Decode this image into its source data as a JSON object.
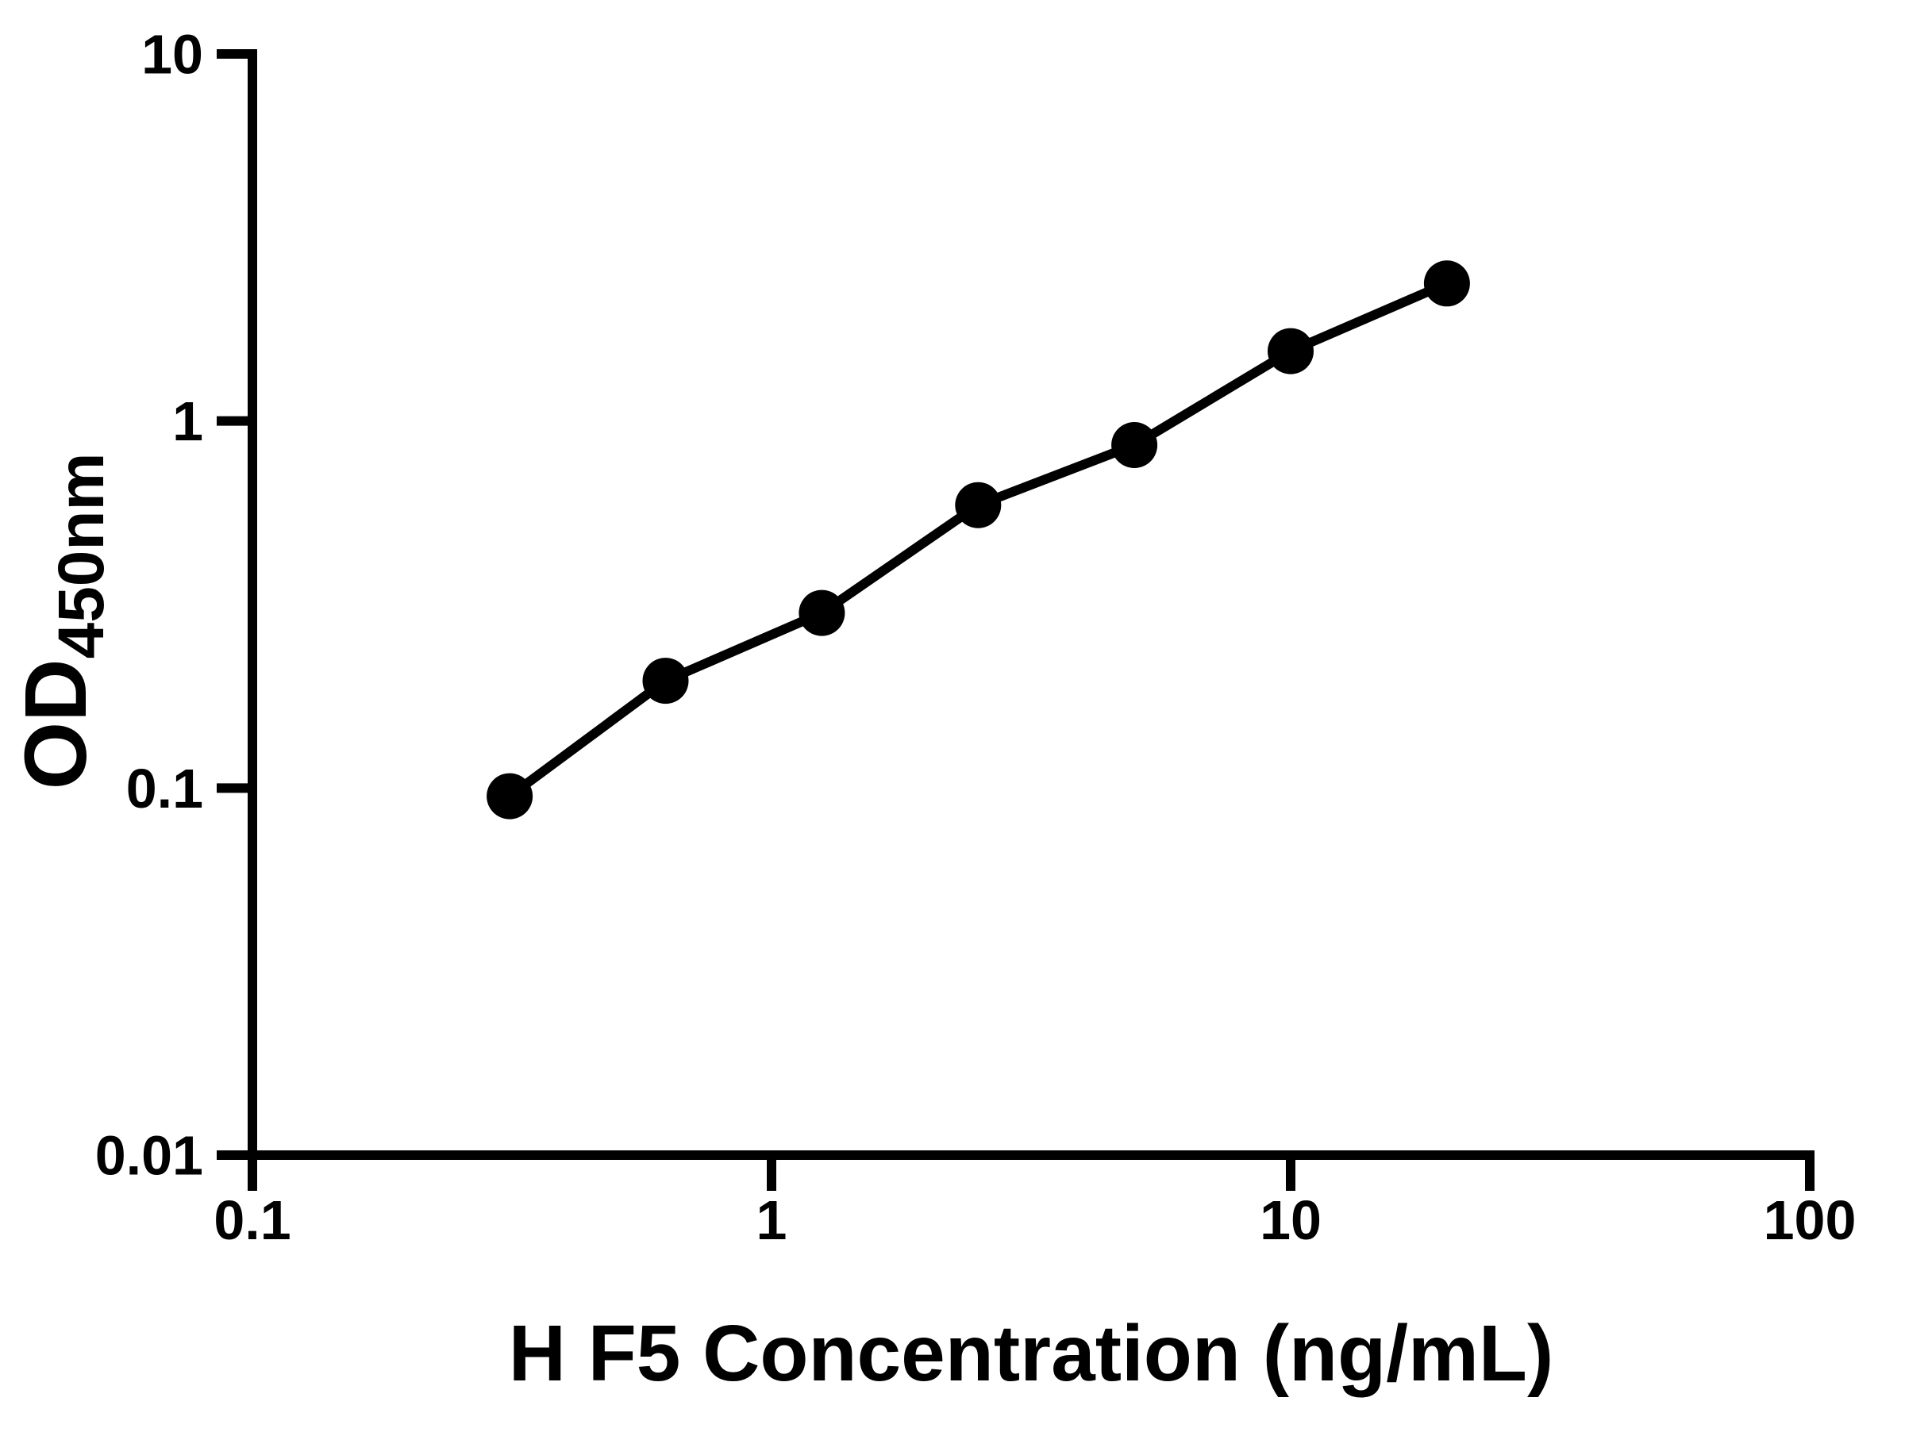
{
  "chart_data": {
    "type": "line",
    "title": "",
    "xlabel": "H F5 Concentration (ng/mL)",
    "ylabel_main": "OD",
    "ylabel_sub": "450nm",
    "x_scale": "log",
    "y_scale": "log",
    "xlim": [
      0.1,
      100
    ],
    "ylim": [
      0.01,
      10
    ],
    "grid": false,
    "legend": "none",
    "line_color": "#000000",
    "marker_color": "#000000",
    "background_color": "#ffffff",
    "x_ticks": [
      {
        "value": 0.1,
        "label": "0.1"
      },
      {
        "value": 1,
        "label": "1"
      },
      {
        "value": 10,
        "label": "10"
      },
      {
        "value": 100,
        "label": "100"
      }
    ],
    "y_ticks": [
      {
        "value": 0.01,
        "label": "0.01"
      },
      {
        "value": 0.1,
        "label": "0.1"
      },
      {
        "value": 1,
        "label": "1"
      },
      {
        "value": 10,
        "label": "10"
      }
    ],
    "points": [
      {
        "x": 0.313,
        "y": 0.095
      },
      {
        "x": 0.625,
        "y": 0.196
      },
      {
        "x": 1.25,
        "y": 0.3
      },
      {
        "x": 2.5,
        "y": 0.59
      },
      {
        "x": 5,
        "y": 0.86
      },
      {
        "x": 10,
        "y": 1.55
      },
      {
        "x": 20,
        "y": 2.37
      }
    ]
  }
}
